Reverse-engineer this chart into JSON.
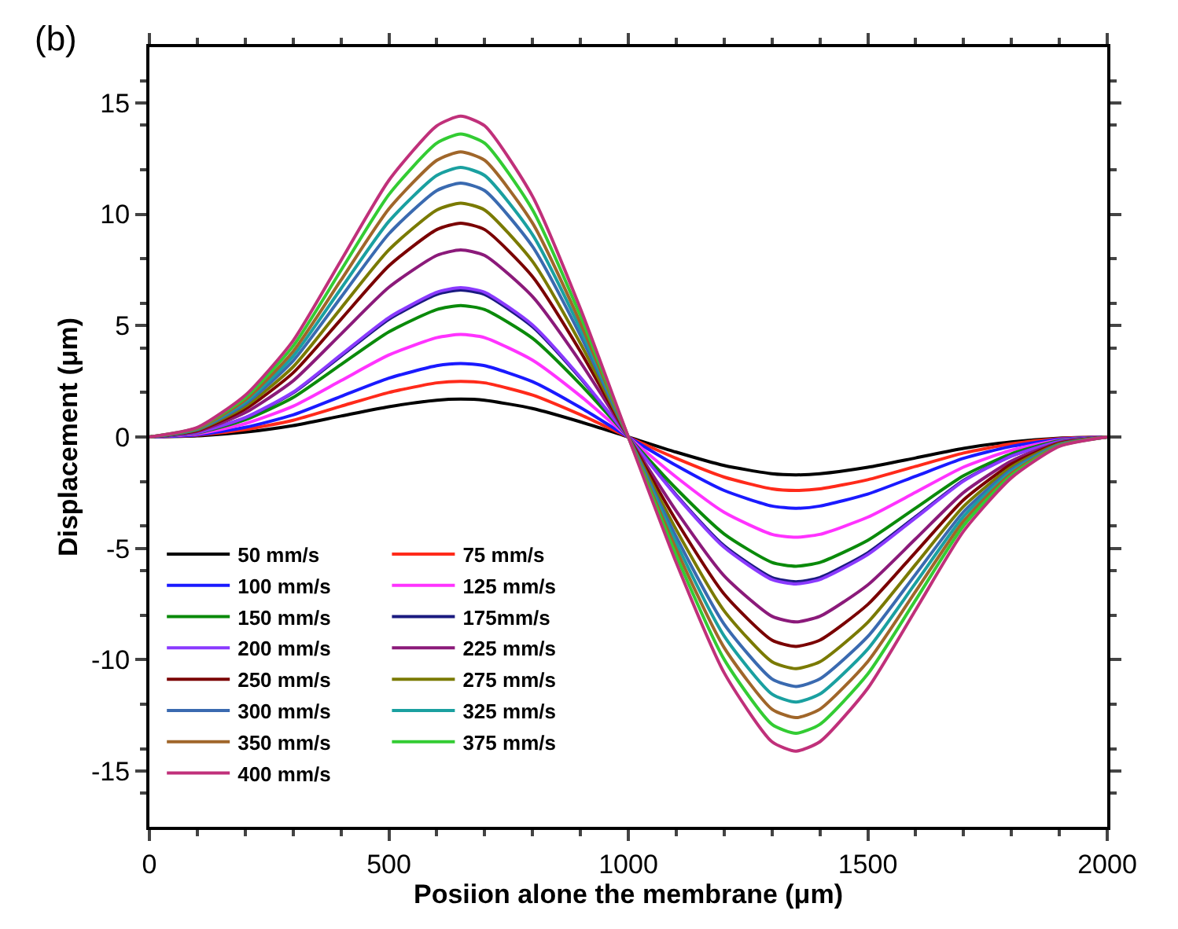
{
  "chart_data": {
    "type": "line",
    "xlabel": "Posiion alone the membrane (μm)",
    "ylabel": "Displacement (μm)",
    "annotations": [
      "(b)"
    ],
    "x": [
      0,
      100,
      200,
      300,
      400,
      500,
      600,
      650,
      700,
      800,
      900,
      1000,
      1100,
      1200,
      1300,
      1350,
      1400,
      1500,
      1600,
      1700,
      1800,
      1900,
      2000
    ],
    "xlim": [
      0,
      2000
    ],
    "xticks": [
      0,
      500,
      1000,
      1500,
      2000
    ],
    "ylim": [
      -17.5,
      17.5
    ],
    "yticks": [
      -15,
      -10,
      -5,
      0,
      5,
      10,
      15
    ],
    "legend": "bottom left",
    "marker": "none",
    "line_style": "solid",
    "series": [
      {
        "name": "50 mm/s",
        "color": "#000000",
        "values": [
          0,
          0.05,
          0.22,
          0.51,
          0.94,
          1.36,
          1.65,
          1.7,
          1.65,
          1.28,
          0.68,
          0,
          -0.68,
          -1.28,
          -1.65,
          -1.7,
          -1.65,
          -1.36,
          -0.94,
          -0.51,
          -0.22,
          -0.05,
          0
        ]
      },
      {
        "name": "75 mm/s",
        "color": "#ff2a1a",
        "values": [
          0,
          0.08,
          0.33,
          0.75,
          1.38,
          2.0,
          2.43,
          2.5,
          2.43,
          1.88,
          1.0,
          0,
          -0.96,
          -1.8,
          -2.33,
          -2.4,
          -2.33,
          -1.92,
          -1.32,
          -0.72,
          -0.31,
          -0.07,
          0
        ]
      },
      {
        "name": "100 mm/s",
        "color": "#1a1aff",
        "values": [
          0,
          0.1,
          0.43,
          0.99,
          1.82,
          2.64,
          3.2,
          3.3,
          3.2,
          2.48,
          1.32,
          0,
          -1.28,
          -2.4,
          -3.1,
          -3.2,
          -3.1,
          -2.56,
          -1.76,
          -0.96,
          -0.42,
          -0.1,
          0
        ]
      },
      {
        "name": "125 mm/s",
        "color": "#ff33ff",
        "values": [
          0,
          0.14,
          0.6,
          1.38,
          2.53,
          3.68,
          4.46,
          4.6,
          4.46,
          3.45,
          1.84,
          0,
          -1.8,
          -3.38,
          -4.37,
          -4.5,
          -4.37,
          -3.6,
          -2.48,
          -1.35,
          -0.59,
          -0.14,
          0
        ]
      },
      {
        "name": "150 mm/s",
        "color": "#0a8a0a",
        "values": [
          0,
          0.18,
          0.77,
          1.77,
          3.25,
          4.72,
          5.72,
          5.9,
          5.72,
          4.43,
          2.36,
          0,
          -2.32,
          -4.35,
          -5.63,
          -5.8,
          -5.63,
          -4.64,
          -3.19,
          -1.74,
          -0.75,
          -0.17,
          0
        ]
      },
      {
        "name": "175mm/s",
        "color": "#1a1a80",
        "values": [
          0,
          0.2,
          0.86,
          1.98,
          3.63,
          5.28,
          6.4,
          6.6,
          6.4,
          4.95,
          2.64,
          0,
          -2.6,
          -4.88,
          -6.31,
          -6.5,
          -6.31,
          -5.2,
          -3.58,
          -1.95,
          -0.85,
          -0.2,
          0
        ]
      },
      {
        "name": "200 mm/s",
        "color": "#8a3aff",
        "values": [
          0,
          0.2,
          0.87,
          2.01,
          3.69,
          5.36,
          6.5,
          6.7,
          6.5,
          5.03,
          2.68,
          0,
          -2.64,
          -4.95,
          -6.4,
          -6.6,
          -6.4,
          -5.28,
          -3.63,
          -1.98,
          -0.86,
          -0.2,
          0
        ]
      },
      {
        "name": "225 mm/s",
        "color": "#8b1a7a",
        "values": [
          0,
          0.25,
          1.09,
          2.52,
          4.62,
          6.72,
          8.15,
          8.4,
          8.15,
          6.3,
          3.36,
          0,
          -3.32,
          -6.23,
          -8.05,
          -8.3,
          -8.05,
          -6.64,
          -4.57,
          -2.49,
          -1.08,
          -0.25,
          0
        ]
      },
      {
        "name": "250 mm/s",
        "color": "#7a0000",
        "values": [
          0,
          0.29,
          1.25,
          2.88,
          5.28,
          7.68,
          9.31,
          9.6,
          9.31,
          7.2,
          3.84,
          0,
          -3.76,
          -7.05,
          -9.12,
          -9.4,
          -9.12,
          -7.52,
          -5.17,
          -2.82,
          -1.22,
          -0.28,
          0
        ]
      },
      {
        "name": "275 mm/s",
        "color": "#7a7a00",
        "values": [
          0,
          0.32,
          1.37,
          3.15,
          5.78,
          8.4,
          10.19,
          10.5,
          10.19,
          7.88,
          4.2,
          0,
          -4.16,
          -7.8,
          -10.09,
          -10.4,
          -10.09,
          -8.32,
          -5.72,
          -3.12,
          -1.35,
          -0.31,
          0
        ]
      },
      {
        "name": "300 mm/s",
        "color": "#3a6ab0",
        "values": [
          0,
          0.34,
          1.48,
          3.42,
          6.27,
          9.12,
          11.06,
          11.4,
          11.06,
          8.55,
          4.56,
          0,
          -4.48,
          -8.4,
          -10.86,
          -11.2,
          -10.86,
          -8.96,
          -6.16,
          -3.36,
          -1.46,
          -0.34,
          0
        ]
      },
      {
        "name": "325 mm/s",
        "color": "#1aa0a0",
        "values": [
          0,
          0.36,
          1.57,
          3.63,
          6.66,
          9.68,
          11.74,
          12.1,
          11.74,
          9.08,
          4.84,
          0,
          -4.76,
          -8.93,
          -11.54,
          -11.9,
          -11.54,
          -9.52,
          -6.55,
          -3.57,
          -1.55,
          -0.36,
          0
        ]
      },
      {
        "name": "350 mm/s",
        "color": "#a0662a",
        "values": [
          0,
          0.38,
          1.66,
          3.84,
          7.04,
          10.24,
          12.42,
          12.8,
          12.42,
          9.6,
          5.12,
          0,
          -5.04,
          -9.45,
          -12.22,
          -12.6,
          -12.22,
          -10.08,
          -6.93,
          -3.78,
          -1.64,
          -0.38,
          0
        ]
      },
      {
        "name": "375 mm/s",
        "color": "#33cc33",
        "values": [
          0,
          0.41,
          1.77,
          4.08,
          7.48,
          10.88,
          13.19,
          13.6,
          13.19,
          10.2,
          5.44,
          0,
          -5.32,
          -9.98,
          -12.9,
          -13.3,
          -12.9,
          -10.64,
          -7.32,
          -3.99,
          -1.73,
          -0.4,
          0
        ]
      },
      {
        "name": "400 mm/s",
        "color": "#c0307a",
        "values": [
          0,
          0.43,
          1.87,
          4.32,
          7.92,
          11.52,
          13.97,
          14.4,
          13.97,
          10.8,
          5.76,
          0,
          -5.64,
          -10.58,
          -13.68,
          -14.1,
          -13.68,
          -11.28,
          -7.76,
          -4.23,
          -1.83,
          -0.42,
          0
        ]
      }
    ]
  }
}
